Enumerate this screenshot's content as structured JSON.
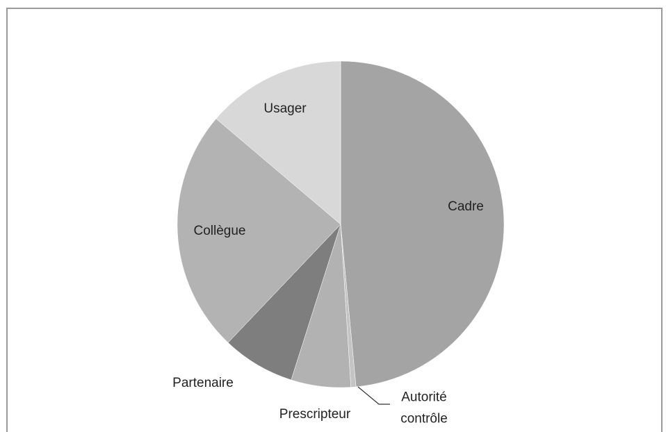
{
  "chart_data": {
    "type": "pie",
    "categories": [
      "Cadre",
      "Autorité contrôle",
      "Prescripteur",
      "Partenaire",
      "Collègue",
      "Usager"
    ],
    "values": [
      48.5,
      0.5,
      5.9,
      7.2,
      24.1,
      13.8
    ],
    "colors": [
      "#a4a4a4",
      "#c4c4c4",
      "#b2b2b2",
      "#7e7e7e",
      "#b3b3b3",
      "#d8d8d8"
    ]
  }
}
